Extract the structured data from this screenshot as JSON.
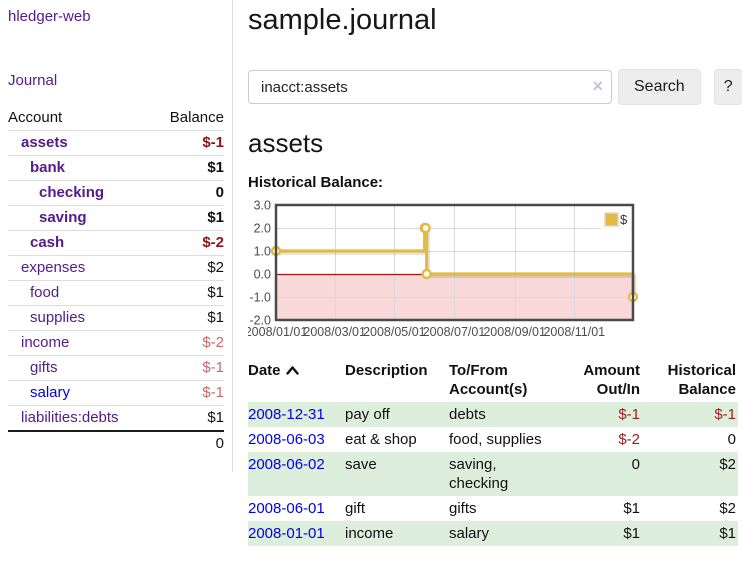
{
  "colors": {
    "purple": "#551a8b",
    "blue": "#0000e6",
    "neg": "#9c2121",
    "neg-strong": "#8e1515",
    "neg-muted": "#c46a6a",
    "stripe": "#ddeedd",
    "divider": "#dddddd",
    "text": "#111111"
  },
  "sidebar": {
    "brand": "hledger-web",
    "journal_link": "Journal",
    "table": {
      "account_header": "Account",
      "balance_header": "Balance",
      "rows": [
        {
          "name": "assets",
          "indent": 1,
          "emphasis": true,
          "balance": "$-1",
          "balance_color": "red"
        },
        {
          "name": "bank",
          "indent": 2,
          "emphasis": true,
          "balance": "$1",
          "balance_color": "default"
        },
        {
          "name": "checking",
          "indent": 3,
          "emphasis": true,
          "balance": "0",
          "balance_color": "default"
        },
        {
          "name": "saving",
          "indent": 3,
          "emphasis": true,
          "balance": "$1",
          "balance_color": "default"
        },
        {
          "name": "cash",
          "indent": 2,
          "emphasis": true,
          "balance": "$-2",
          "balance_color": "red"
        },
        {
          "name": "expenses",
          "indent": 1,
          "emphasis": false,
          "balance": "$2",
          "balance_color": "default"
        },
        {
          "name": "food",
          "indent": 2,
          "emphasis": false,
          "balance": "$1",
          "balance_color": "default"
        },
        {
          "name": "supplies",
          "indent": 2,
          "emphasis": false,
          "balance": "$1",
          "balance_color": "default"
        },
        {
          "name": "income",
          "indent": 1,
          "emphasis": false,
          "balance": "$-2",
          "balance_color": "red-muted"
        },
        {
          "name": "gifts",
          "indent": 2,
          "emphasis": false,
          "balance": "$-1",
          "balance_color": "red-muted"
        },
        {
          "name": "salary",
          "indent": 2,
          "emphasis": false,
          "link_color": "blue",
          "balance": "$-1",
          "balance_color": "red-muted"
        },
        {
          "name": "liabilities:debts",
          "indent": 1,
          "emphasis": false,
          "balance": "$1",
          "balance_color": "default"
        }
      ],
      "total": "0"
    }
  },
  "header": {
    "title": "sample.journal"
  },
  "search": {
    "value": "inacct:assets",
    "clear_icon": "×",
    "button_label": "Search",
    "help_label": "?"
  },
  "account_page": {
    "heading": "assets",
    "chart_label": "Historical Balance:"
  },
  "chart_data": {
    "type": "line",
    "step": true,
    "title": "Historical Balance:",
    "x_range": [
      "2008-01-01",
      "2008-12-31"
    ],
    "y_range": [
      -2,
      3
    ],
    "y_tick_labels": [
      "3.0",
      "2.0",
      "1.0",
      "0.0",
      "-1.0",
      "-2.0"
    ],
    "x_tick_labels": [
      "2008/01/01",
      "2008/03/01",
      "2008/05/01",
      "2008/07/01",
      "2008/09/01",
      "2008/11/01"
    ],
    "series": [
      {
        "name": "$",
        "color": "#e3ba42",
        "points": [
          [
            "2008-01-01",
            1
          ],
          [
            "2008-06-01",
            2
          ],
          [
            "2008-06-02",
            2
          ],
          [
            "2008-06-03",
            0
          ],
          [
            "2008-12-31",
            -1
          ]
        ]
      }
    ],
    "legend_position": "top-right",
    "grid": true,
    "grid_color": "#d9d9d9",
    "border_color": "#4a4a4a",
    "negative_region_color": "#f8d8d8",
    "zero_line_color": "#9b1515",
    "tick_label_color": "#4d4d4d"
  },
  "register_table": {
    "columns": [
      {
        "label": "Date",
        "lines": [
          "Date"
        ],
        "align": "left",
        "sort": "asc"
      },
      {
        "label": "Description",
        "lines": [
          "Description"
        ],
        "align": "left"
      },
      {
        "label": "To/From Account(s)",
        "lines": [
          "To/From",
          "Account(s)"
        ],
        "align": "left"
      },
      {
        "label": "Amount Out/In",
        "lines": [
          "Amount",
          "Out/In"
        ],
        "align": "right"
      },
      {
        "label": "Historical Balance",
        "lines": [
          "Historical",
          "Balance"
        ],
        "align": "right"
      }
    ],
    "rows": [
      {
        "date": "2008-12-31",
        "description": "pay off",
        "accounts_lines": [
          "debts"
        ],
        "amount": "$-1",
        "amount_color": "red",
        "balance": "$-1",
        "balance_color": "red"
      },
      {
        "date": "2008-06-03",
        "description": "eat & shop",
        "accounts_lines": [
          "food, supplies"
        ],
        "amount": "$-2",
        "amount_color": "red",
        "balance": "0",
        "balance_color": "default"
      },
      {
        "date": "2008-06-02",
        "description": "save",
        "accounts_lines": [
          "saving,",
          "checking"
        ],
        "amount": "0",
        "amount_color": "default",
        "balance": "$2",
        "balance_color": "default"
      },
      {
        "date": "2008-06-01",
        "description": "gift",
        "accounts_lines": [
          "gifts"
        ],
        "amount": "$1",
        "amount_color": "default",
        "balance": "$2",
        "balance_color": "default"
      },
      {
        "date": "2008-01-01",
        "description": "income",
        "accounts_lines": [
          "salary"
        ],
        "amount": "$1",
        "amount_color": "default",
        "balance": "$1",
        "balance_color": "default"
      }
    ]
  }
}
